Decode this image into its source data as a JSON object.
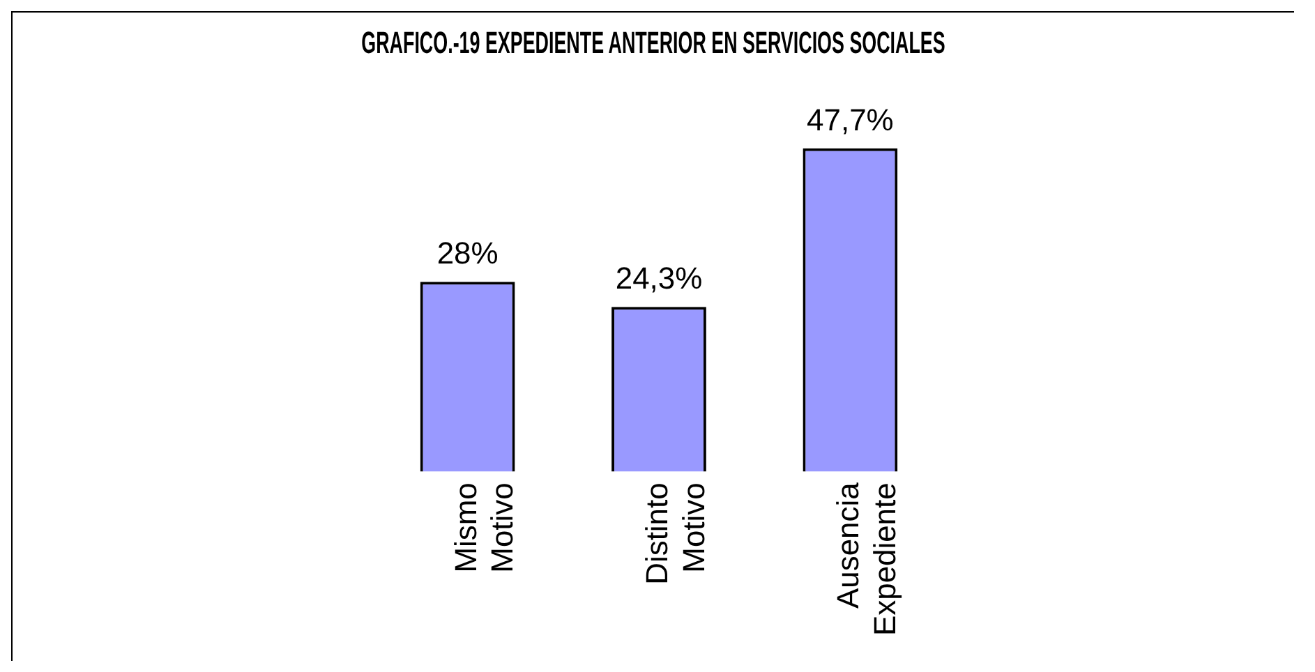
{
  "chart_data": {
    "type": "bar",
    "title": "GRAFICO.-19 EXPEDIENTE ANTERIOR EN SERVICIOS SOCIALES",
    "categories": [
      "Mismo Motivo",
      "Distinto Motivo",
      "Ausencia Expediente"
    ],
    "values": [
      28,
      24.3,
      47.7
    ],
    "value_labels": [
      "28%",
      "24,3%",
      "47,7%"
    ],
    "color": "#9999ff",
    "relative": false,
    "legend": false,
    "grid": false
  }
}
